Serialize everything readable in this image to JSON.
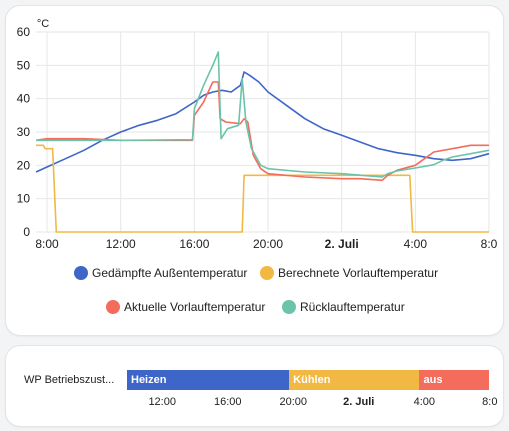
{
  "chart_data": {
    "type": "line",
    "unit": "°C",
    "ylim": [
      0,
      60
    ],
    "yticks": [
      "0",
      "10",
      "20",
      "30",
      "40",
      "50",
      "60"
    ],
    "xlim": [
      7.4,
      32.0
    ],
    "xticks": [
      {
        "label": "8:00",
        "x": 8,
        "bold": false
      },
      {
        "label": "12:00",
        "x": 12,
        "bold": false
      },
      {
        "label": "16:00",
        "x": 16,
        "bold": false
      },
      {
        "label": "20:00",
        "x": 20,
        "bold": false
      },
      {
        "label": "2. Juli",
        "x": 24,
        "bold": true
      },
      {
        "label": "4:00",
        "x": 28,
        "bold": false
      },
      {
        "label": "8:0",
        "x": 32,
        "bold": false
      }
    ],
    "grid": true,
    "legend_position": "bottom",
    "series": [
      {
        "name": "Gedämpfte Außentemperatur",
        "color": "#3e66c9",
        "points": [
          [
            7.4,
            18
          ],
          [
            8,
            19.5
          ],
          [
            9,
            22
          ],
          [
            10,
            24.5
          ],
          [
            11,
            27.5
          ],
          [
            12,
            30
          ],
          [
            13,
            32
          ],
          [
            14,
            33.5
          ],
          [
            15,
            35.5
          ],
          [
            16,
            39
          ],
          [
            16.5,
            41
          ],
          [
            17,
            42
          ],
          [
            17.5,
            42.5
          ],
          [
            18,
            42
          ],
          [
            18.5,
            44
          ],
          [
            18.7,
            48
          ],
          [
            19,
            47
          ],
          [
            19.5,
            45
          ],
          [
            20,
            42
          ],
          [
            21,
            38
          ],
          [
            22,
            34
          ],
          [
            23,
            31
          ],
          [
            24,
            29
          ],
          [
            25,
            27
          ],
          [
            26,
            25
          ],
          [
            27,
            23.8
          ],
          [
            28,
            23
          ],
          [
            29,
            22
          ],
          [
            30,
            21.5
          ],
          [
            31,
            22
          ],
          [
            32,
            23.5
          ]
        ]
      },
      {
        "name": "Berechnete Vorlauftemperatur",
        "color": "#f1b843",
        "points": [
          [
            7.4,
            26
          ],
          [
            7.8,
            26
          ],
          [
            7.9,
            25
          ],
          [
            8.3,
            25
          ],
          [
            8.5,
            0
          ],
          [
            18.6,
            0
          ],
          [
            18.7,
            17
          ],
          [
            27.7,
            17
          ],
          [
            27.85,
            0
          ],
          [
            32,
            0
          ]
        ]
      },
      {
        "name": "Aktuelle Vorlauftemperatur",
        "color": "#f36c5c",
        "points": [
          [
            7.4,
            27.5
          ],
          [
            8,
            28
          ],
          [
            10,
            28
          ],
          [
            12,
            27.5
          ],
          [
            15.9,
            27.5
          ],
          [
            16,
            35
          ],
          [
            16.5,
            39
          ],
          [
            17,
            45
          ],
          [
            17.3,
            45
          ],
          [
            17.4,
            34
          ],
          [
            17.7,
            33
          ],
          [
            18.5,
            32.5
          ],
          [
            18.7,
            34
          ],
          [
            18.9,
            33
          ],
          [
            19.2,
            23
          ],
          [
            19.6,
            19
          ],
          [
            20,
            17.5
          ],
          [
            22,
            16.5
          ],
          [
            24,
            16
          ],
          [
            25,
            16
          ],
          [
            26.2,
            15.5
          ],
          [
            26.5,
            17
          ],
          [
            27,
            18.5
          ],
          [
            28,
            20
          ],
          [
            28.5,
            22
          ],
          [
            29,
            24
          ],
          [
            30,
            25
          ],
          [
            31,
            26
          ],
          [
            32,
            26
          ]
        ]
      },
      {
        "name": "Rücklauftemperatur",
        "color": "#6bc3aa",
        "points": [
          [
            7.4,
            27.5
          ],
          [
            8,
            27.5
          ],
          [
            12,
            27.5
          ],
          [
            15.9,
            27.7
          ],
          [
            16,
            37
          ],
          [
            16.5,
            44
          ],
          [
            17,
            50
          ],
          [
            17.3,
            54
          ],
          [
            17.45,
            28
          ],
          [
            17.8,
            31
          ],
          [
            18.4,
            32
          ],
          [
            18.6,
            46
          ],
          [
            18.8,
            33
          ],
          [
            19.1,
            25
          ],
          [
            19.6,
            20
          ],
          [
            20,
            19
          ],
          [
            22,
            18
          ],
          [
            24,
            17.5
          ],
          [
            26.2,
            16.5
          ],
          [
            26.5,
            17.5
          ],
          [
            27,
            18.3
          ],
          [
            28,
            19.2
          ],
          [
            29,
            20.2
          ],
          [
            29.5,
            21.5
          ],
          [
            30,
            22.5
          ],
          [
            31,
            23.5
          ],
          [
            32,
            24.5
          ]
        ]
      }
    ]
  },
  "timeline": {
    "entity_label": "WP Betriebszust...",
    "segments": [
      {
        "label": "Heizen",
        "color": "#3e66c9",
        "share": 0.448
      },
      {
        "label": "Kühlen",
        "color": "#f1b843",
        "share": 0.36
      },
      {
        "label": "aus",
        "color": "#f36c5c",
        "share": 0.192
      }
    ],
    "ticks": [
      {
        "label": "12:00",
        "x": 12,
        "bold": false
      },
      {
        "label": "16:00",
        "x": 16,
        "bold": false
      },
      {
        "label": "20:00",
        "x": 20,
        "bold": false
      },
      {
        "label": "2. Juli",
        "x": 24,
        "bold": true
      },
      {
        "label": "4:00",
        "x": 28,
        "bold": false
      },
      {
        "label": "8:0",
        "x": 32,
        "bold": false
      }
    ]
  }
}
